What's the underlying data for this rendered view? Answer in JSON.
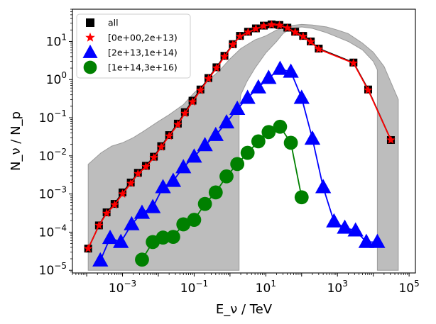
{
  "chart_data": {
    "type": "line",
    "xscale": "log",
    "yscale": "log",
    "xlabel": "E_ν / TeV",
    "ylabel": "N_ν / N_p",
    "xlim": [
      4e-05,
      150000
    ],
    "ylim": [
      8.5e-06,
      70
    ],
    "xtick_labels": [
      {
        "value": 0.001,
        "label": "10",
        "exp": "−3"
      },
      {
        "value": 0.1,
        "label": "10",
        "exp": "−1"
      },
      {
        "value": 10,
        "label": "10",
        "exp": "1"
      },
      {
        "value": 1000,
        "label": "10",
        "exp": "3"
      },
      {
        "value": 100000,
        "label": "10",
        "exp": "5"
      }
    ],
    "ytick_labels": [
      {
        "value": 1e-05,
        "label": "10",
        "exp": "−5"
      },
      {
        "value": 0.0001,
        "label": "10",
        "exp": "−4"
      },
      {
        "value": 0.001,
        "label": "10",
        "exp": "−3"
      },
      {
        "value": 0.01,
        "label": "10",
        "exp": "−2"
      },
      {
        "value": 0.1,
        "label": "10",
        "exp": "−1"
      },
      {
        "value": 1,
        "label": "10",
        "exp": "0"
      },
      {
        "value": 10,
        "label": "10",
        "exp": "1"
      }
    ],
    "legend": {
      "placement": "top-left"
    },
    "band": {
      "name": "uncertainty band",
      "color": "#999999",
      "upper": [
        [
          0.00011,
          0.006
        ],
        [
          0.00025,
          0.012
        ],
        [
          0.0005,
          0.018
        ],
        [
          0.001,
          0.022
        ],
        [
          0.002,
          0.03
        ],
        [
          0.004,
          0.045
        ],
        [
          0.01,
          0.08
        ],
        [
          0.02,
          0.12
        ],
        [
          0.05,
          0.22
        ],
        [
          0.1,
          0.45
        ],
        [
          0.2,
          0.8
        ],
        [
          0.5,
          1.7
        ],
        [
          1,
          3.5
        ],
        [
          2,
          6.5
        ],
        [
          5,
          11
        ],
        [
          10,
          14
        ],
        [
          20,
          20
        ],
        [
          50,
          26
        ],
        [
          100,
          28
        ],
        [
          200,
          27
        ],
        [
          500,
          24
        ],
        [
          1000,
          20
        ],
        [
          2000,
          16
        ],
        [
          5000,
          9
        ],
        [
          10000,
          5.2
        ],
        [
          20000,
          2.2
        ],
        [
          50000,
          0.3
        ]
      ],
      "lower": [
        [
          50000,
          1e-05
        ],
        [
          40000,
          1e-05
        ],
        [
          13000,
          1e-05
        ],
        [
          13000,
          1.8
        ],
        [
          10000,
          3
        ],
        [
          5000,
          6
        ],
        [
          2000,
          10
        ],
        [
          1000,
          13
        ],
        [
          500,
          17
        ],
        [
          200,
          22
        ],
        [
          100,
          24
        ],
        [
          50,
          22
        ],
        [
          30,
          16
        ],
        [
          20,
          10
        ],
        [
          10,
          5
        ],
        [
          5,
          2
        ],
        [
          3,
          0.9
        ],
        [
          2,
          0.4
        ],
        [
          1.8,
          0.15
        ],
        [
          1.8,
          1e-05
        ],
        [
          0.00011,
          1e-05
        ]
      ]
    },
    "series": [
      {
        "name": "all",
        "marker": "square",
        "color": "#000000",
        "points": [
          [
            0.00011,
            3.7e-05
          ],
          [
            0.00022,
            0.00015
          ],
          [
            0.00036,
            0.00033
          ],
          [
            0.0006,
            0.00055
          ],
          [
            0.001,
            0.0011
          ],
          [
            0.0017,
            0.002
          ],
          [
            0.0027,
            0.0036
          ],
          [
            0.0045,
            0.0055
          ],
          [
            0.0075,
            0.0095
          ],
          [
            0.012,
            0.018
          ],
          [
            0.02,
            0.035
          ],
          [
            0.035,
            0.07
          ],
          [
            0.055,
            0.14
          ],
          [
            0.09,
            0.28
          ],
          [
            0.15,
            0.55
          ],
          [
            0.25,
            1.1
          ],
          [
            0.42,
            2.1
          ],
          [
            0.7,
            4.2
          ],
          [
            1.2,
            8.5
          ],
          [
            1.9,
            14
          ],
          [
            3.2,
            18
          ],
          [
            5.3,
            22
          ],
          [
            8.8,
            26
          ],
          [
            14.5,
            28
          ],
          [
            24,
            27
          ],
          [
            40,
            23
          ],
          [
            66,
            18
          ],
          [
            110,
            14
          ],
          [
            180,
            10
          ],
          [
            300,
            6.5
          ],
          [
            2800,
            2.8
          ],
          [
            7200,
            0.55
          ],
          [
            31000,
            0.026
          ]
        ]
      },
      {
        "name": "[0e+00,2e+13)",
        "marker": "star",
        "color": "#ff0000",
        "points": [
          [
            0.00011,
            3.7e-05
          ],
          [
            0.00022,
            0.00015
          ],
          [
            0.00036,
            0.00031
          ],
          [
            0.0006,
            0.00052
          ],
          [
            0.001,
            0.001
          ],
          [
            0.0017,
            0.0019
          ],
          [
            0.0027,
            0.0034
          ],
          [
            0.0045,
            0.0052
          ],
          [
            0.0075,
            0.009
          ],
          [
            0.012,
            0.017
          ],
          [
            0.02,
            0.033
          ],
          [
            0.035,
            0.066
          ],
          [
            0.055,
            0.13
          ],
          [
            0.09,
            0.26
          ],
          [
            0.15,
            0.52
          ],
          [
            0.25,
            1.05
          ],
          [
            0.42,
            2.0
          ],
          [
            0.7,
            4.0
          ],
          [
            1.2,
            8.2
          ],
          [
            1.9,
            13.5
          ],
          [
            3.2,
            17.5
          ],
          [
            5.3,
            21.5
          ],
          [
            8.8,
            25.5
          ],
          [
            14.5,
            27.5
          ],
          [
            24,
            26.5
          ],
          [
            40,
            22.5
          ],
          [
            66,
            17.5
          ],
          [
            110,
            13.5
          ],
          [
            180,
            9.8
          ],
          [
            300,
            6.3
          ],
          [
            2800,
            2.7
          ],
          [
            7200,
            0.53
          ],
          [
            31000,
            0.026
          ]
        ]
      },
      {
        "name": "[2e+13,1e+14)",
        "marker": "triangle",
        "color": "#0000ff",
        "points": [
          [
            0.00024,
            1.8e-05
          ],
          [
            0.00045,
            7e-05
          ],
          [
            0.0009,
            5.5e-05
          ],
          [
            0.0018,
            0.00016
          ],
          [
            0.0035,
            0.00032
          ],
          [
            0.007,
            0.00045
          ],
          [
            0.0135,
            0.0015
          ],
          [
            0.026,
            0.0022
          ],
          [
            0.05,
            0.005
          ],
          [
            0.1,
            0.0095
          ],
          [
            0.2,
            0.019
          ],
          [
            0.4,
            0.035
          ],
          [
            0.8,
            0.075
          ],
          [
            1.6,
            0.17
          ],
          [
            3.1,
            0.33
          ],
          [
            6.2,
            0.62
          ],
          [
            12,
            1.1
          ],
          [
            25,
            1.9
          ],
          [
            50,
            1.6
          ],
          [
            100,
            0.33
          ],
          [
            200,
            0.028
          ],
          [
            400,
            0.0015
          ],
          [
            800,
            0.00019
          ],
          [
            1600,
            0.00013
          ],
          [
            3200,
            0.00011
          ],
          [
            6400,
            5.5e-05
          ],
          [
            13000,
            5.5e-05
          ]
        ]
      },
      {
        "name": "[1e+14,3e+16)",
        "marker": "circle",
        "color": "#008000",
        "points": [
          [
            0.0035,
            1.9e-05
          ],
          [
            0.007,
            5.5e-05
          ],
          [
            0.0135,
            7.2e-05
          ],
          [
            0.026,
            7.5e-05
          ],
          [
            0.05,
            0.00016
          ],
          [
            0.1,
            0.00021
          ],
          [
            0.2,
            0.00055
          ],
          [
            0.4,
            0.0011
          ],
          [
            0.8,
            0.0029
          ],
          [
            1.6,
            0.0061
          ],
          [
            3.1,
            0.012
          ],
          [
            6.2,
            0.024
          ],
          [
            12,
            0.042
          ],
          [
            25,
            0.058
          ],
          [
            50,
            0.022
          ],
          [
            100,
            0.00082
          ]
        ]
      }
    ]
  }
}
